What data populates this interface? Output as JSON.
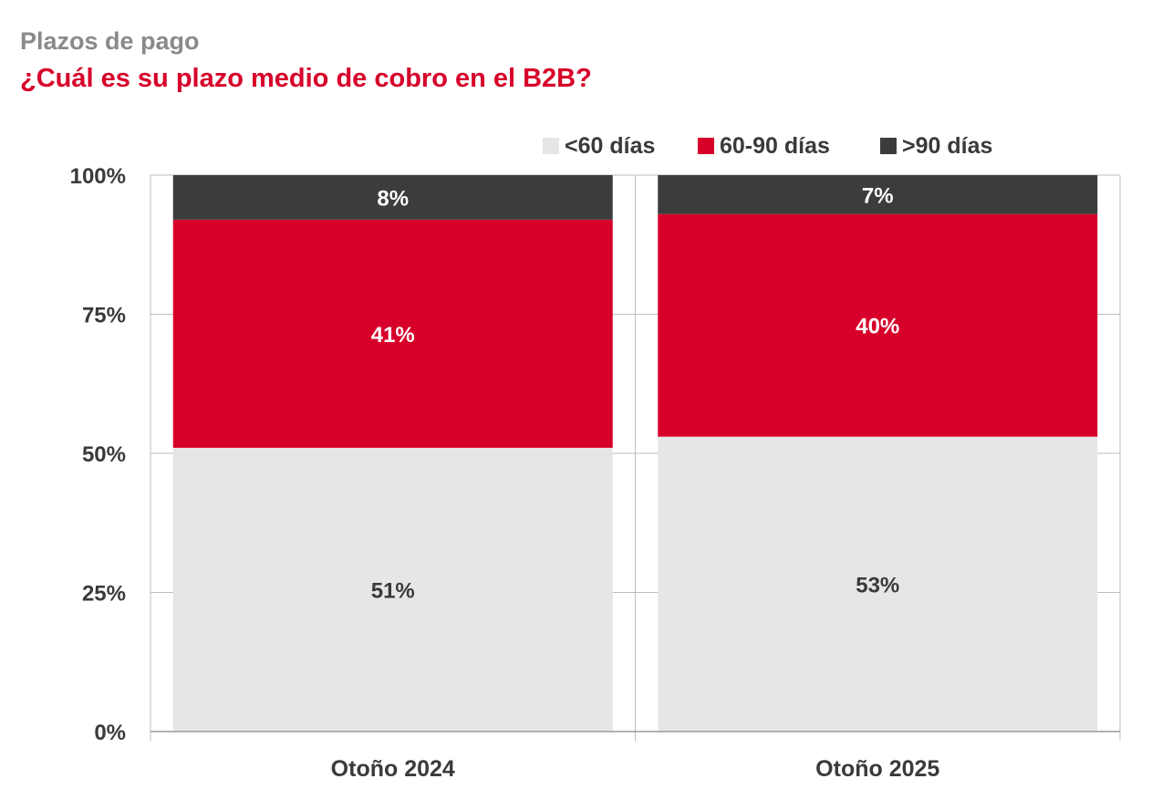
{
  "header": {
    "title": "Plazos de pago",
    "subtitle": "¿Cuál es su plazo medio de cobro en el B2B?"
  },
  "colors": {
    "title": "#8a8a8a",
    "subtitle": "#d7002a",
    "lt60": "#e6e6e6",
    "d60_90": "#d7002a",
    "gt90": "#3c3c3c"
  },
  "chart_data": {
    "type": "bar",
    "stacked": true,
    "categories": [
      "Otoño 2024",
      "Otoño 2025"
    ],
    "series": [
      {
        "name": "<60 días",
        "values": [
          51,
          53
        ],
        "labels": [
          "51%",
          "53%"
        ],
        "color": "#e6e6e6",
        "label_color": "#3a3a3a"
      },
      {
        "name": "60-90 días",
        "values": [
          41,
          40
        ],
        "labels": [
          "41%",
          "40%"
        ],
        "color": "#d7002a",
        "label_color": "#ffffff"
      },
      {
        "name": ">90 días",
        "values": [
          8,
          7
        ],
        "labels": [
          "8%",
          "7%"
        ],
        "color": "#3c3c3c",
        "label_color": "#ffffff"
      }
    ],
    "yticks": [
      "0%",
      "25%",
      "50%",
      "75%",
      "100%"
    ],
    "ylim": [
      0,
      100
    ],
    "grid": true,
    "legend": "top-right"
  }
}
